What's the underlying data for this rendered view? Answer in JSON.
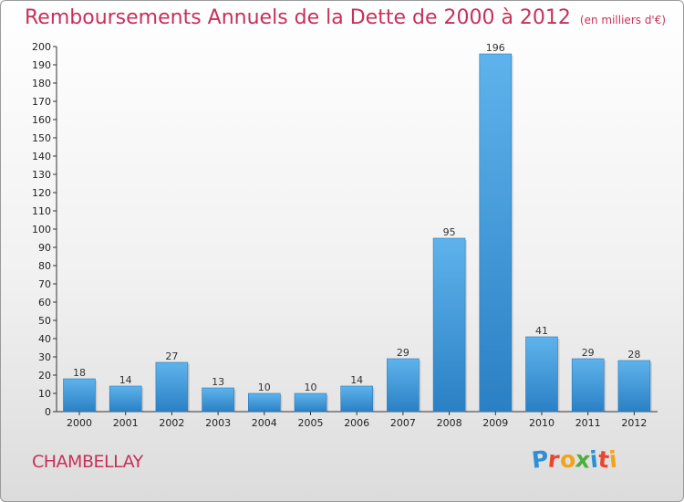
{
  "chart_data": {
    "type": "bar",
    "title": "Remboursements Annuels de la Dette de 2000 à 2012",
    "unit": "(en milliers d'€)",
    "categories": [
      "2000",
      "2001",
      "2002",
      "2003",
      "2004",
      "2005",
      "2006",
      "2007",
      "2008",
      "2009",
      "2010",
      "2011",
      "2012"
    ],
    "values": [
      18,
      14,
      27,
      13,
      10,
      10,
      14,
      29,
      95,
      196,
      41,
      29,
      28
    ],
    "ylim": [
      0,
      200
    ],
    "ytick_step": 10,
    "xlabel": "",
    "ylabel": "",
    "grid": false,
    "bar_color_top": "#5fb3ec",
    "bar_color_bottom": "#2a80c4"
  },
  "footer": {
    "commune": "CHAMBELLAY",
    "logo_letters": [
      "P",
      "r",
      "o",
      "x",
      "i",
      "t",
      "i"
    ],
    "logo_colors": [
      "#2e8fd6",
      "#e8462e",
      "#f2a21b",
      "#4cae3b",
      "#2e8fd6",
      "#e8462e",
      "#f2a21b"
    ]
  }
}
